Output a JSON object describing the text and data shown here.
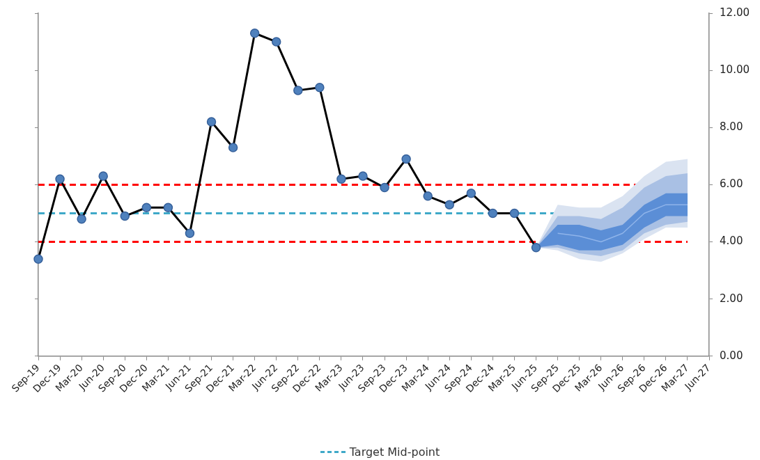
{
  "chart_data": {
    "type": "line",
    "categories": [
      "Sep-19",
      "Dec-19",
      "Mar-20",
      "Jun-20",
      "Sep-20",
      "Dec-20",
      "Mar-21",
      "Jun-21",
      "Sep-21",
      "Dec-21",
      "Mar-22",
      "Jun-22",
      "Sep-22",
      "Dec-22",
      "Mar-23",
      "Jun-23",
      "Sep-23",
      "Dec-23",
      "Mar-24",
      "Jun-24",
      "Sep-24",
      "Dec-24",
      "Mar-25",
      "Jun-25",
      "Sep-25",
      "Dec-25",
      "Mar-26",
      "Jun-26",
      "Sep-26",
      "Dec-26",
      "Mar-27",
      "Jun-27"
    ],
    "series": [
      {
        "type": "area",
        "color": "#dae3f1",
        "values": [
          null,
          null,
          null,
          null,
          null,
          null,
          null,
          null,
          null,
          null,
          null,
          null,
          null,
          null,
          null,
          null,
          null,
          null,
          null,
          null,
          null,
          null,
          null,
          null,
          null,
          null,
          null,
          null,
          null,
          null,
          null,
          null
        ],
        "lower": [
          null,
          null,
          null,
          null,
          null,
          null,
          null,
          null,
          null,
          null,
          null,
          null,
          null,
          null,
          null,
          null,
          null,
          null,
          null,
          null,
          null,
          null,
          null,
          3.8,
          3.7,
          3.4,
          3.3,
          3.6,
          4.1,
          4.5,
          4.5,
          null
        ],
        "upper": [
          null,
          null,
          null,
          null,
          null,
          null,
          null,
          null,
          null,
          null,
          null,
          null,
          null,
          null,
          null,
          null,
          null,
          null,
          null,
          null,
          null,
          null,
          null,
          3.8,
          5.3,
          5.2,
          5.2,
          5.6,
          6.3,
          6.8,
          6.9,
          null
        ]
      },
      {
        "type": "area",
        "color": "#a9c0e4",
        "values": [
          null,
          null,
          null,
          null,
          null,
          null,
          null,
          null,
          null,
          null,
          null,
          null,
          null,
          null,
          null,
          null,
          null,
          null,
          null,
          null,
          null,
          null,
          null,
          null,
          null,
          null,
          null,
          null,
          null,
          null,
          null,
          null
        ],
        "lower": [
          null,
          null,
          null,
          null,
          null,
          null,
          null,
          null,
          null,
          null,
          null,
          null,
          null,
          null,
          null,
          null,
          null,
          null,
          null,
          null,
          null,
          null,
          null,
          3.8,
          3.8,
          3.6,
          3.5,
          3.7,
          4.3,
          4.6,
          4.7,
          null
        ],
        "upper": [
          null,
          null,
          null,
          null,
          null,
          null,
          null,
          null,
          null,
          null,
          null,
          null,
          null,
          null,
          null,
          null,
          null,
          null,
          null,
          null,
          null,
          null,
          null,
          3.8,
          4.9,
          4.9,
          4.8,
          5.2,
          5.9,
          6.3,
          6.4,
          null
        ]
      },
      {
        "type": "area",
        "color": "#5b8ed6",
        "values": [
          null,
          null,
          null,
          null,
          null,
          null,
          null,
          null,
          null,
          null,
          null,
          null,
          null,
          null,
          null,
          null,
          null,
          null,
          null,
          null,
          null,
          null,
          null,
          null,
          null,
          null,
          null,
          null,
          null,
          null,
          null,
          null
        ],
        "lower": [
          null,
          null,
          null,
          null,
          null,
          null,
          null,
          null,
          null,
          null,
          null,
          null,
          null,
          null,
          null,
          null,
          null,
          null,
          null,
          null,
          null,
          null,
          null,
          3.8,
          3.9,
          3.7,
          3.7,
          3.9,
          4.5,
          4.9,
          4.9,
          null
        ],
        "upper": [
          null,
          null,
          null,
          null,
          null,
          null,
          null,
          null,
          null,
          null,
          null,
          null,
          null,
          null,
          null,
          null,
          null,
          null,
          null,
          null,
          null,
          null,
          null,
          3.8,
          4.6,
          4.6,
          4.4,
          4.6,
          5.3,
          5.7,
          5.7,
          null
        ]
      },
      {
        "type": "line",
        "color": "#8fb4ea",
        "marker": "none",
        "values": [
          null,
          null,
          null,
          null,
          null,
          null,
          null,
          null,
          null,
          null,
          null,
          null,
          null,
          null,
          null,
          null,
          null,
          null,
          null,
          null,
          null,
          null,
          null,
          null,
          4.3,
          4.2,
          4.0,
          4.3,
          5.0,
          5.3,
          5.3,
          null
        ]
      },
      {
        "type": "line",
        "color": "#000000",
        "marker": "circle",
        "values": [
          3.4,
          6.2,
          4.8,
          6.3,
          4.9,
          5.2,
          5.2,
          4.3,
          8.2,
          7.3,
          11.3,
          11.0,
          9.3,
          9.4,
          6.2,
          6.3,
          5.9,
          6.9,
          5.6,
          5.3,
          5.7,
          5.0,
          5.0,
          3.8,
          null,
          null,
          null,
          null,
          null,
          null,
          null,
          null
        ]
      }
    ],
    "ylim": [
      0,
      12
    ],
    "yticks": [
      {
        "value": 0,
        "label": "0.00"
      },
      {
        "value": 2,
        "label": "2.00"
      },
      {
        "value": 4,
        "label": "4.00"
      },
      {
        "value": 6,
        "label": "6.00"
      },
      {
        "value": 8,
        "label": "8.00"
      },
      {
        "value": 10,
        "label": "10.00"
      },
      {
        "value": 12,
        "label": "12.00"
      }
    ],
    "ref_lines": [
      {
        "axis": "y",
        "value": 6,
        "color": "#ff0000",
        "line_style": "dashed"
      },
      {
        "axis": "y",
        "value": 4,
        "color": "#ff0000",
        "line_style": "dashed"
      },
      {
        "axis": "y",
        "value": 5,
        "color": "#3fa9c8",
        "line_style": "dashed",
        "label": "Target Mid-point"
      }
    ],
    "grid": false,
    "legend": "bottom",
    "line_style": "solid"
  }
}
